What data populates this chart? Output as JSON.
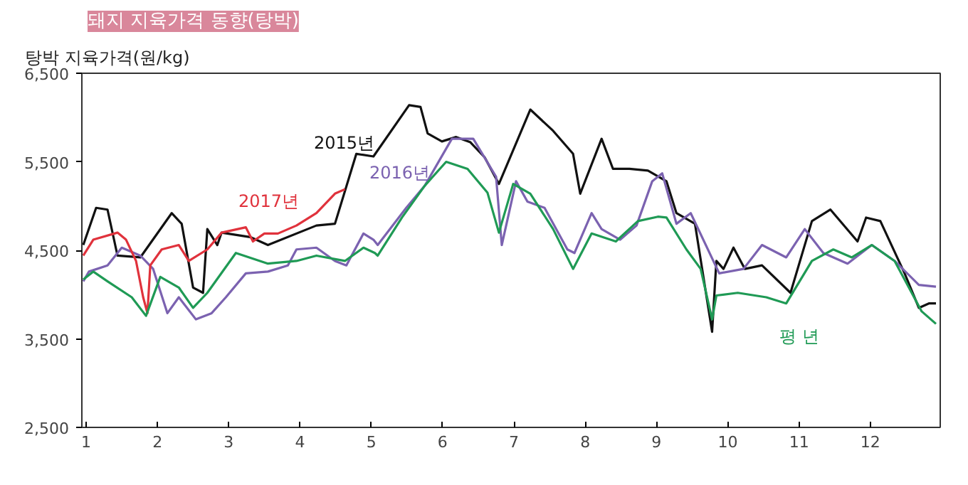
{
  "chart_data": {
    "type": "line",
    "title": "돼지 지육가격 동향(탕박)",
    "ylabel": "탕박 지육가격(원/kg)",
    "xlim": [
      0.94,
      12.98
    ],
    "xticks": [
      1,
      2,
      3,
      4,
      5,
      6,
      7,
      8,
      9,
      10,
      11,
      12
    ],
    "ylim": [
      2500,
      6500
    ],
    "yticks": [
      {
        "value": 2500,
        "label": "2,500"
      },
      {
        "value": 3500,
        "label": "3,500"
      },
      {
        "value": 4500,
        "label": "4,500"
      },
      {
        "value": 5500,
        "label": "5,500"
      },
      {
        "value": 6500,
        "label": "6,500"
      }
    ],
    "grid": false,
    "legend": false,
    "line_style": "solid",
    "marker": "none",
    "series": [
      {
        "name": "2015년",
        "color": "#111111",
        "x": [
          0.96,
          1.14,
          1.3,
          1.44,
          1.76,
          2.2,
          2.34,
          2.5,
          2.64,
          2.7,
          2.84,
          2.9,
          3.3,
          3.55,
          4.23,
          4.49,
          4.79,
          5.03,
          5.53,
          5.69,
          5.79,
          5.99,
          6.19,
          6.39,
          6.59,
          6.79,
          7.23,
          7.55,
          7.83,
          7.93,
          8.23,
          8.39,
          8.62,
          8.88,
          9.14,
          9.28,
          9.54,
          9.78,
          9.84,
          9.94,
          10.08,
          10.24,
          10.48,
          10.88,
          11.18,
          11.44,
          11.82,
          11.94,
          12.14,
          12.48,
          12.68,
          12.82,
          12.92
        ],
        "values": [
          4560,
          4980,
          4960,
          4440,
          4420,
          4920,
          4800,
          4080,
          4020,
          4740,
          4560,
          4700,
          4650,
          4560,
          4780,
          4800,
          5590,
          5560,
          6140,
          6120,
          5820,
          5730,
          5780,
          5720,
          5550,
          5250,
          6090,
          5850,
          5590,
          5140,
          5760,
          5420,
          5420,
          5400,
          5280,
          4920,
          4800,
          3580,
          4380,
          4290,
          4530,
          4290,
          4330,
          4020,
          4830,
          4960,
          4600,
          4870,
          4830,
          4240,
          3850,
          3900,
          3900
        ]
      },
      {
        "name": "2016년",
        "color": "#7b62b0",
        "x": [
          0.96,
          1.04,
          1.3,
          1.5,
          1.76,
          1.94,
          2.14,
          2.3,
          2.54,
          2.76,
          2.96,
          3.24,
          3.55,
          3.83,
          3.95,
          4.23,
          4.49,
          4.65,
          4.89,
          5.03,
          5.09,
          5.49,
          5.75,
          6.13,
          6.43,
          6.75,
          6.83,
          7.03,
          7.19,
          7.43,
          7.75,
          7.85,
          8.09,
          8.23,
          8.49,
          8.72,
          8.94,
          9.08,
          9.28,
          9.48,
          9.88,
          10.22,
          10.48,
          10.82,
          11.08,
          11.34,
          11.68,
          12.02,
          12.34,
          12.68,
          12.92
        ],
        "values": [
          4150,
          4260,
          4330,
          4530,
          4440,
          4290,
          3790,
          3970,
          3720,
          3790,
          3970,
          4240,
          4260,
          4330,
          4510,
          4530,
          4380,
          4330,
          4690,
          4620,
          4560,
          4980,
          5230,
          5760,
          5760,
          5330,
          4560,
          5280,
          5050,
          4980,
          4510,
          4470,
          4920,
          4740,
          4620,
          4780,
          5280,
          5370,
          4800,
          4920,
          4240,
          4290,
          4560,
          4420,
          4740,
          4470,
          4350,
          4560,
          4380,
          4110,
          4090
        ]
      },
      {
        "name": "2017년",
        "color": "#e0323c",
        "x": [
          0.96,
          1.1,
          1.44,
          1.56,
          1.7,
          1.8,
          1.86,
          1.9,
          2.06,
          2.3,
          2.44,
          2.7,
          2.9,
          3.24,
          3.34,
          3.5,
          3.69,
          3.95,
          4.23,
          4.49,
          4.63
        ],
        "values": [
          4440,
          4620,
          4700,
          4620,
          4380,
          3970,
          3790,
          4330,
          4510,
          4560,
          4380,
          4510,
          4700,
          4760,
          4600,
          4690,
          4690,
          4780,
          4920,
          5140,
          5190
        ]
      },
      {
        "name": "평 년",
        "color": "#1f9a55",
        "x": [
          0.96,
          1.1,
          1.3,
          1.64,
          1.84,
          2.04,
          2.3,
          2.5,
          2.7,
          3.1,
          3.55,
          3.95,
          4.23,
          4.63,
          4.89,
          5.05,
          5.09,
          5.43,
          5.75,
          6.05,
          6.35,
          6.63,
          6.79,
          6.99,
          7.23,
          7.55,
          7.83,
          8.09,
          8.43,
          8.74,
          9.02,
          9.14,
          9.42,
          9.62,
          9.78,
          9.84,
          10.14,
          10.54,
          10.82,
          11.18,
          11.48,
          11.74,
          12.02,
          12.34,
          12.72,
          12.92
        ],
        "values": [
          4170,
          4260,
          4150,
          3970,
          3760,
          4200,
          4080,
          3850,
          4020,
          4470,
          4350,
          4380,
          4440,
          4380,
          4530,
          4470,
          4440,
          4870,
          5230,
          5500,
          5420,
          5150,
          4700,
          5250,
          5140,
          4740,
          4290,
          4690,
          4600,
          4830,
          4880,
          4870,
          4510,
          4290,
          3720,
          3990,
          4020,
          3970,
          3900,
          4380,
          4510,
          4420,
          4560,
          4380,
          3810,
          3670
        ]
      }
    ]
  }
}
